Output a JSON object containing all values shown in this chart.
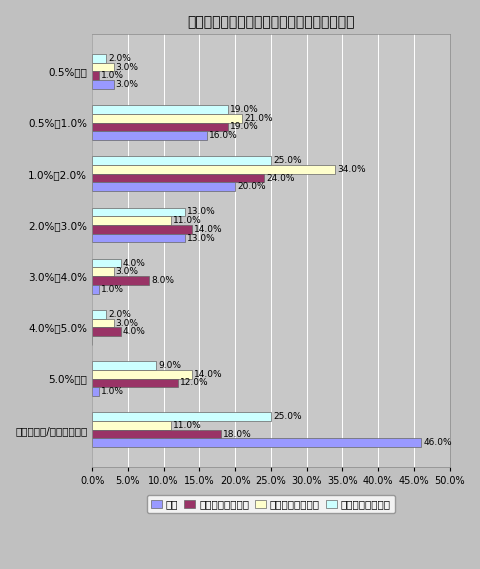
{
  "title": "購入を見込む低リスク運用商品の年間利回り",
  "categories": [
    "0.5%未満",
    "0.5%〜1.0%",
    "1.0%〜2.0%",
    "2.0%〜3.0%",
    "3.0%〜4.0%",
    "4.0%〜5.0%",
    "5.0%以上",
    "分からない/答えたくない"
  ],
  "series": {
    "全体": [
      3.0,
      16.0,
      20.0,
      13.0,
      1.0,
      0.0,
      1.0,
      46.0
    ],
    "金融リテラシー高": [
      1.0,
      19.0,
      24.0,
      14.0,
      8.0,
      4.0,
      12.0,
      18.0
    ],
    "金融リテラシー中": [
      3.0,
      21.0,
      34.0,
      11.0,
      3.0,
      3.0,
      14.0,
      11.0
    ],
    "金融リテラシー低": [
      2.0,
      19.0,
      25.0,
      13.0,
      4.0,
      2.0,
      9.0,
      25.0
    ]
  },
  "colors": {
    "全体": "#9999ff",
    "金融リテラシー高": "#993366",
    "金融リテラシー中": "#ffffcc",
    "金融リテラシー低": "#ccffff"
  },
  "series_order_plot": [
    "全体",
    "金融リテラシー高",
    "金融リテラシー中",
    "金融リテラシー低"
  ],
  "legend_order": [
    "全体",
    "金融リテラシー高",
    "金融リテラシー中",
    "金融リテラシー低"
  ],
  "xlim": [
    0,
    50
  ],
  "xticks": [
    0,
    5,
    10,
    15,
    20,
    25,
    30,
    35,
    40,
    45,
    50
  ],
  "background_color": "#c0c0c0",
  "plot_bg_color": "#c8c8c8",
  "bar_height": 0.17,
  "bar_edgecolor": "#666666",
  "fontsize_title": 10,
  "fontsize_labels": 7.5,
  "fontsize_ticks": 7,
  "fontsize_legend": 7.5,
  "fontsize_barval": 6.5
}
